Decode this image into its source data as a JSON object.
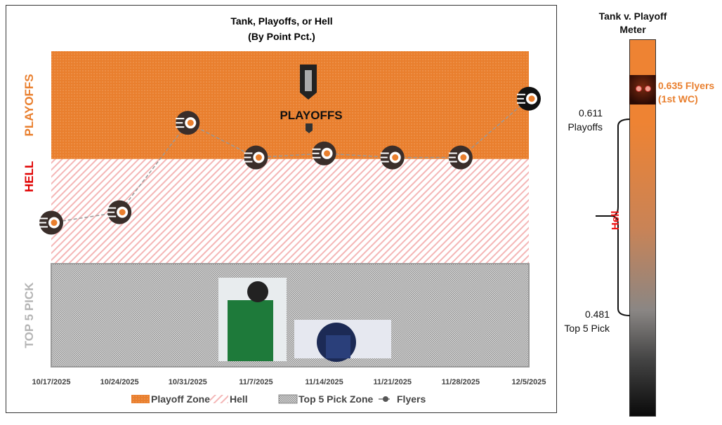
{
  "chart_data": {
    "type": "line",
    "title": "Tank, Playoffs, or Hell",
    "subtitle": "(By Point Pct.)",
    "categories": [
      "10/17/2025",
      "10/24/2025",
      "10/31/2025",
      "11/7/2025",
      "11/14/2025",
      "11/21/2025",
      "11/28/2025",
      "12/5/2025"
    ],
    "series": [
      {
        "name": "Flyers",
        "values": [
          0.532,
          0.545,
          0.656,
          0.613,
          0.618,
          0.613,
          0.613,
          0.686
        ],
        "marker": "flyers-logo-icon"
      }
    ],
    "zones": [
      {
        "name": "Playoff Zone",
        "label": "PLAYOFFS",
        "from": 0.611,
        "to": 0.745,
        "color": "#E97F2E"
      },
      {
        "name": "Hell",
        "label": "HELL",
        "from": 0.481,
        "to": 0.611,
        "color": "#F4B6B6"
      },
      {
        "name": "Top 5 Pick Zone",
        "label": "TOP 5 PICK",
        "from": 0.353,
        "to": 0.481,
        "color": "#9A9A9A"
      }
    ],
    "ylim": [
      0.353,
      0.745
    ],
    "legend": "bottom",
    "grid": false,
    "legend_entries": [
      "Playoff Zone",
      "Hell",
      "Top 5 Pick Zone",
      "Flyers"
    ],
    "logo_text": "PLAYOFFS"
  },
  "meter": {
    "title_line1": "Tank v. Playoff",
    "title_line2": "Meter",
    "flyers_value": "0.635 Flyers",
    "flyers_note": "(1st WC)",
    "playoffs_value": "0.611",
    "playoffs_label": "Playoffs",
    "top5_value": "0.481",
    "top5_label": "Top 5 Pick",
    "hell_label": "Hell",
    "colors": {
      "orange": "#EE8333",
      "hell": "#E11111",
      "dark": "#0A0A0A"
    }
  }
}
